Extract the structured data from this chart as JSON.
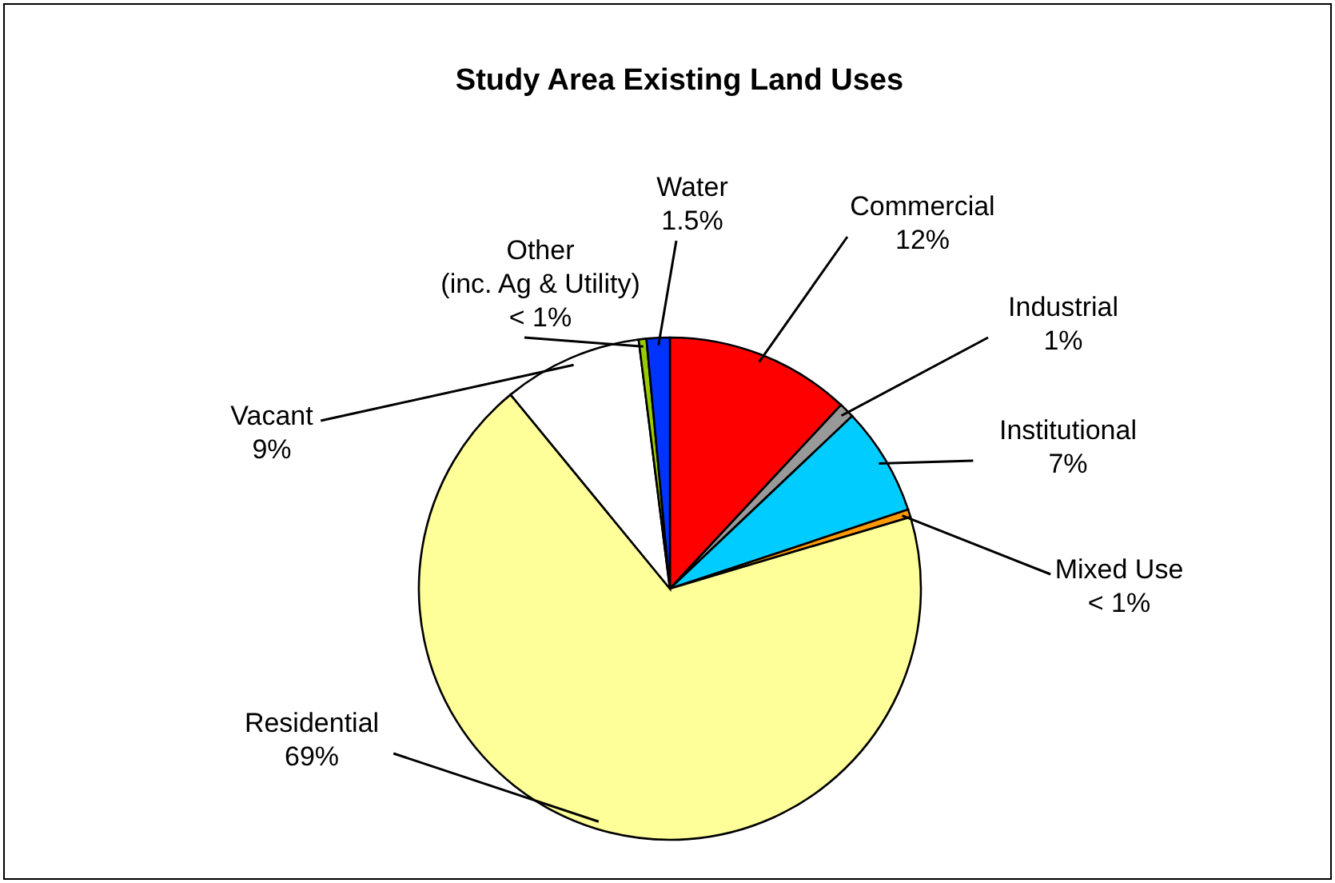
{
  "chart_data": {
    "type": "pie",
    "title": "Study Area Existing Land Uses",
    "categories": [
      "Commercial",
      "Industrial",
      "Institutional",
      "Mixed Use",
      "Residential",
      "Vacant",
      "Other (inc. Ag & Utility)",
      "Water"
    ],
    "values": [
      12,
      1,
      7,
      0.5,
      69,
      9,
      0.5,
      1.5
    ],
    "value_labels": [
      "12%",
      "1%",
      "7%",
      "< 1%",
      "69%",
      "9%",
      "< 1%",
      "1.5%"
    ],
    "colors": [
      "#ff0000",
      "#999999",
      "#00ccff",
      "#ff9900",
      "#ffff99",
      "#ffffff",
      "#99cc00",
      "#0033ff"
    ]
  }
}
